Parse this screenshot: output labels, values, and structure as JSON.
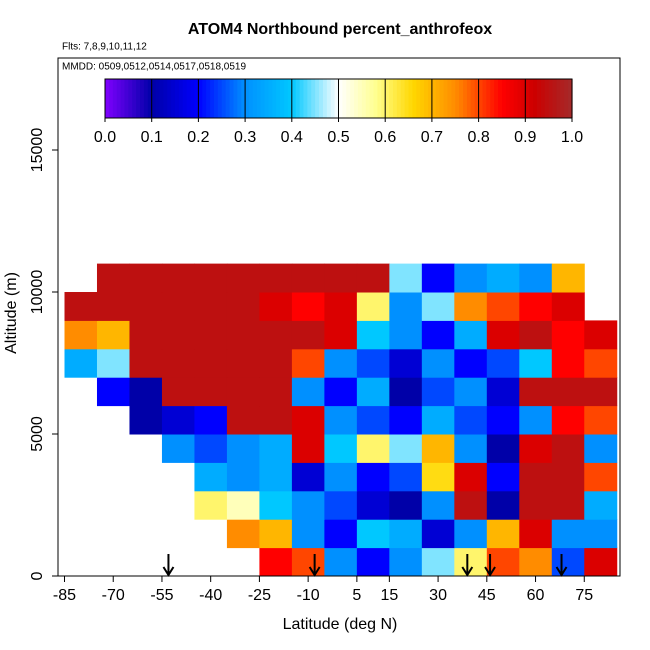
{
  "chart_data": {
    "type": "heatmap",
    "title": "ATOM4 Northbound percent_anthrofeox",
    "subtitle": "Flts: 7,8,9,10,11,12",
    "annotation": "MMDD: 0509,0512,0514,0517,0518,0519",
    "x_label": "Latitude (deg N)",
    "y_label": "Altitude (m)",
    "xlim": [
      -87,
      86
    ],
    "ylim": [
      0,
      18240
    ],
    "xticks": [
      -85,
      -70,
      -55,
      -40,
      -25,
      -10,
      5,
      15,
      30,
      45,
      60,
      75
    ],
    "yticks": [
      0,
      5000,
      10000,
      15000
    ],
    "x_bins": [
      -85,
      -75,
      -65,
      -55,
      -45,
      -35,
      -25,
      -15,
      -5,
      5,
      15,
      25,
      35,
      45,
      55,
      65,
      75,
      85
    ],
    "y_bins": [
      0,
      1000,
      2000,
      3000,
      4000,
      5000,
      6000,
      7000,
      8000,
      9000,
      10000,
      11000
    ],
    "values": [
      [
        null,
        null,
        null,
        null,
        null,
        null,
        0.85,
        0.8,
        0.3,
        0.2,
        0.3,
        0.45,
        0.6,
        0.8,
        0.75,
        0.25,
        0.9
      ],
      [
        null,
        null,
        null,
        null,
        null,
        0.75,
        0.7,
        0.3,
        0.2,
        0.4,
        0.35,
        0.15,
        0.3,
        0.7,
        0.9,
        0.3,
        0.3
      ],
      [
        null,
        null,
        null,
        null,
        0.6,
        0.55,
        0.4,
        0.3,
        0.25,
        0.15,
        0.1,
        0.3,
        0.95,
        0.1,
        0.95,
        0.95,
        0.35
      ],
      [
        null,
        null,
        null,
        null,
        0.35,
        0.3,
        0.35,
        0.15,
        0.3,
        0.2,
        0.25,
        0.65,
        0.9,
        0.2,
        0.95,
        0.95,
        0.8
      ],
      [
        null,
        null,
        null,
        0.3,
        0.25,
        0.3,
        0.35,
        0.9,
        0.4,
        0.6,
        0.45,
        0.7,
        0.3,
        0.1,
        0.9,
        0.95,
        0.3
      ],
      [
        null,
        null,
        0.1,
        0.15,
        0.2,
        0.95,
        0.95,
        0.9,
        0.3,
        0.25,
        0.2,
        0.35,
        0.25,
        0.2,
        0.3,
        0.85,
        0.8
      ],
      [
        null,
        0.2,
        0.1,
        0.95,
        0.95,
        0.95,
        0.95,
        0.3,
        0.2,
        0.35,
        0.1,
        0.25,
        0.3,
        0.15,
        0.95,
        0.95,
        0.95
      ],
      [
        0.35,
        0.45,
        0.95,
        0.95,
        0.95,
        0.95,
        0.95,
        0.8,
        0.3,
        0.25,
        0.15,
        0.3,
        0.2,
        0.25,
        0.4,
        0.85,
        0.8
      ],
      [
        0.75,
        0.7,
        0.95,
        0.95,
        0.95,
        0.95,
        0.95,
        0.95,
        0.9,
        0.4,
        0.3,
        0.2,
        0.35,
        0.9,
        0.95,
        0.85,
        0.9
      ],
      [
        0.95,
        0.95,
        0.95,
        0.95,
        0.95,
        0.95,
        0.9,
        0.85,
        0.9,
        0.6,
        0.3,
        0.45,
        0.75,
        0.8,
        0.85,
        0.9,
        null
      ],
      [
        null,
        0.95,
        0.95,
        0.95,
        0.95,
        0.95,
        0.95,
        0.95,
        0.95,
        0.95,
        0.45,
        0.2,
        0.3,
        0.35,
        0.3,
        0.7,
        null
      ]
    ],
    "flight_markers": [
      -53,
      -8,
      39,
      46,
      68
    ],
    "colorbar_ticks": [
      {
        "value": 0,
        "label": "0.0"
      },
      {
        "value": 0.1,
        "label": "0.1"
      },
      {
        "value": 0.2,
        "label": "0.2"
      },
      {
        "value": 0.3,
        "label": "0.3"
      },
      {
        "value": 0.4,
        "label": "0.4"
      },
      {
        "value": 0.5,
        "label": "0.5"
      },
      {
        "value": 0.6,
        "label": "0.6"
      },
      {
        "value": 0.7,
        "label": "0.7"
      },
      {
        "value": 0.8,
        "label": "0.8"
      },
      {
        "value": 0.9,
        "label": "0.9"
      },
      {
        "value": 1,
        "label": "1.0"
      }
    ],
    "colorscale": [
      [
        0,
        "#8000ff"
      ],
      [
        0.1,
        "#0000a8"
      ],
      [
        0.2,
        "#0000ff"
      ],
      [
        0.3,
        "#0090ff"
      ],
      [
        0.4,
        "#00c8ff"
      ],
      [
        0.5,
        "#ffffff"
      ],
      [
        0.58,
        "#ffff90"
      ],
      [
        0.66,
        "#ffd700"
      ],
      [
        0.75,
        "#ff8c00"
      ],
      [
        0.85,
        "#ff0000"
      ],
      [
        0.92,
        "#cc0000"
      ],
      [
        1,
        "#a52a2a"
      ]
    ]
  }
}
